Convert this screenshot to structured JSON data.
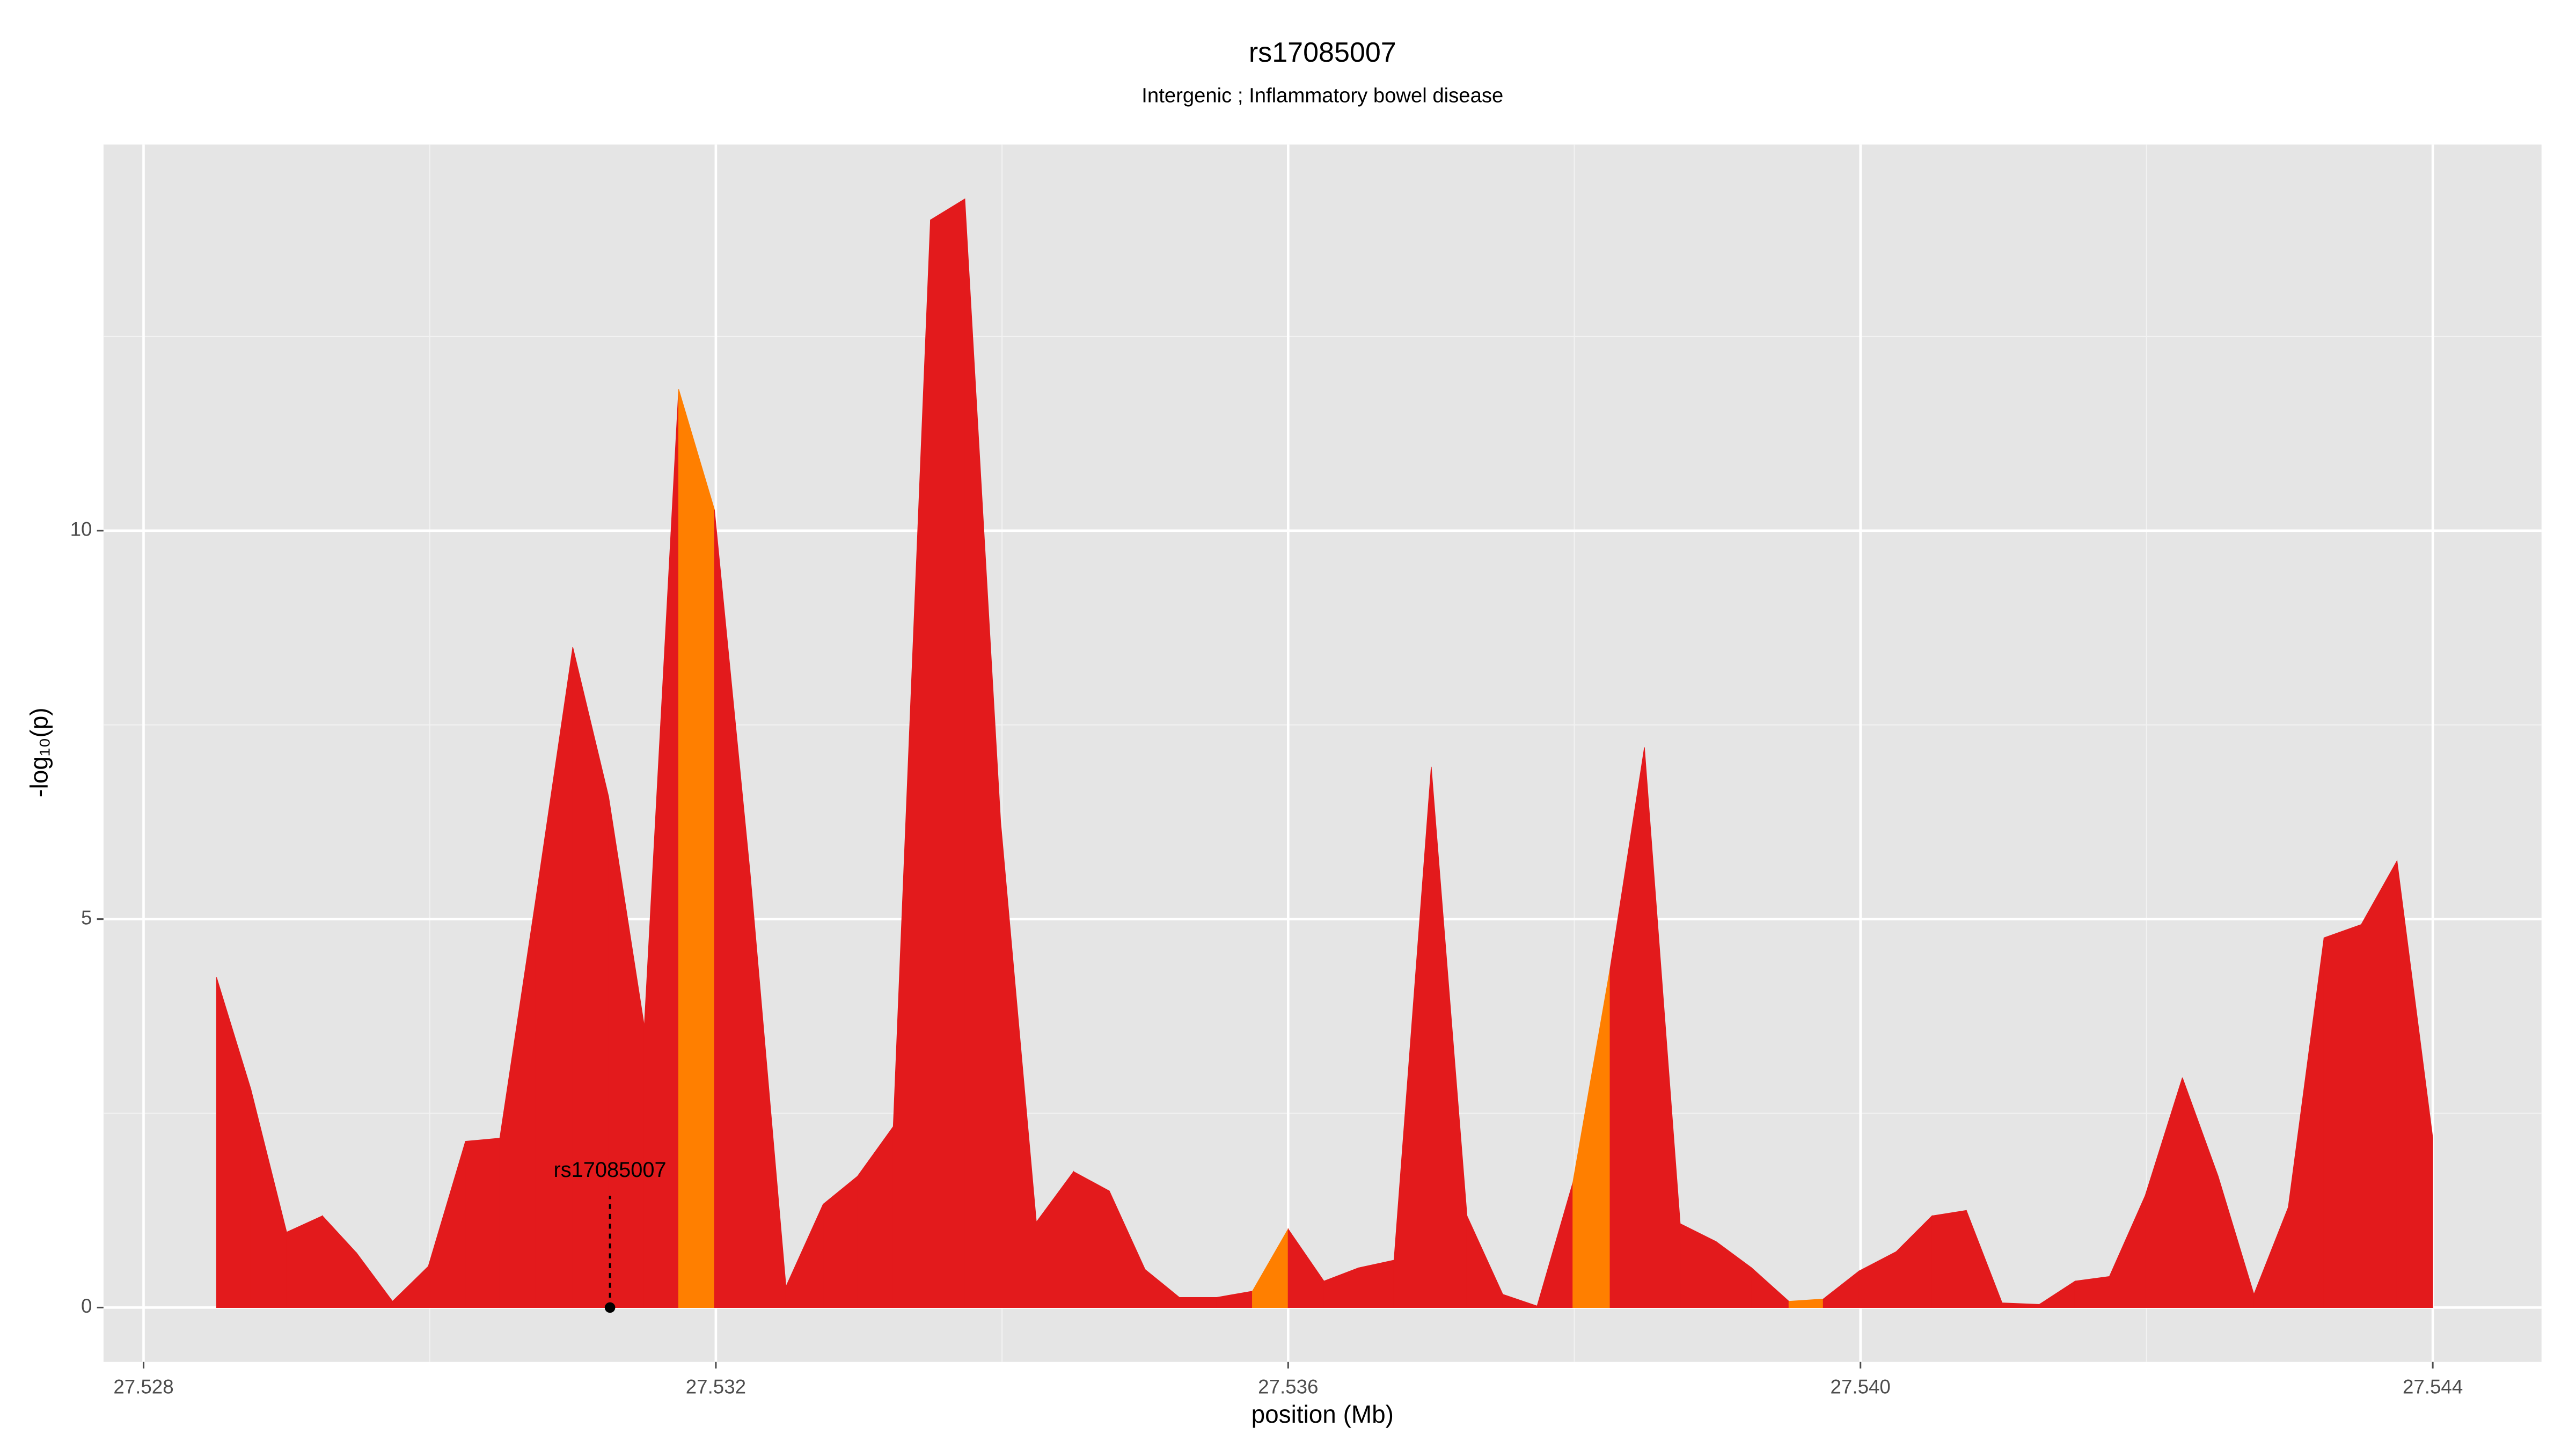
{
  "chart_data": {
    "type": "area",
    "title": "rs17085007",
    "subtitle": "Intergenic ; Inflammatory bowel disease",
    "x_label": "position (Mb)",
    "y_label": "-log₁₀(p)",
    "xlim": [
      27.52772,
      27.54476
    ],
    "ylim": [
      -0.7,
      14.97
    ],
    "xticks": [
      27.528,
      27.532,
      27.536,
      {
        "value": 27.54,
        "label": "27.540"
      },
      27.544
    ],
    "yticks": [
      0,
      5,
      10
    ],
    "grid": true,
    "minor_grid": true,
    "background": "#e5e5e5",
    "x": [
      27.52851,
      27.52875,
      27.529,
      27.52925,
      27.52949,
      27.52974,
      27.52999,
      27.53025,
      27.53049,
      27.53074,
      27.531,
      27.53125,
      27.5315,
      27.53174,
      27.53199,
      27.53224,
      27.53249,
      27.53275,
      27.53299,
      27.53324,
      27.5335,
      27.53374,
      27.53399,
      27.53424,
      27.5345,
      27.53475,
      27.535,
      27.53524,
      27.5355,
      27.53575,
      27.536,
      27.53625,
      27.53649,
      27.53674,
      27.537,
      27.53725,
      27.5375,
      27.53774,
      27.53799,
      27.53825,
      27.53849,
      27.53874,
      27.53899,
      27.53924,
      27.5395,
      27.53974,
      27.53999,
      27.54025,
      27.5405,
      27.54074,
      27.54099,
      27.54125,
      27.5415,
      27.54174,
      27.54199,
      27.54225,
      27.5425,
      27.54275,
      27.54299,
      27.54324,
      27.5435,
      27.54375,
      27.544
    ],
    "values": [
      4.25,
      2.81,
      0.97,
      1.18,
      0.7,
      0.08,
      0.53,
      2.14,
      2.18,
      5.24,
      8.5,
      6.58,
      3.62,
      11.82,
      10.27,
      5.58,
      0.27,
      1.33,
      1.69,
      2.33,
      14.0,
      14.27,
      6.26,
      1.1,
      1.75,
      1.5,
      0.49,
      0.13,
      0.13,
      0.21,
      1.01,
      0.34,
      0.51,
      0.61,
      6.96,
      1.18,
      0.17,
      0.02,
      1.61,
      4.36,
      7.21,
      1.08,
      0.85,
      0.51,
      0.08,
      0.11,
      0.47,
      0.72,
      1.18,
      1.25,
      0.06,
      0.04,
      0.34,
      0.4,
      1.44,
      2.96,
      1.69,
      0.17,
      1.29,
      4.76,
      4.93,
      5.75,
      2.18
    ],
    "colors": [
      "#e31a1c",
      "#e31a1c",
      "#e31a1c",
      "#e31a1c",
      "#e31a1c",
      "#e31a1c",
      "#e31a1c",
      "#e31a1c",
      "#e31a1c",
      "#e31a1c",
      "#e31a1c",
      "#e31a1c",
      "#e31a1c",
      "#ff7f00",
      "#e31a1c",
      "#e31a1c",
      "#e31a1c",
      "#e31a1c",
      "#e31a1c",
      "#e31a1c",
      "#e31a1c",
      "#e31a1c",
      "#e31a1c",
      "#e31a1c",
      "#e31a1c",
      "#e31a1c",
      "#e31a1c",
      "#e31a1c",
      "#e31a1c",
      "#ff7f00",
      "#e31a1c",
      "#e31a1c",
      "#e31a1c",
      "#e31a1c",
      "#e31a1c",
      "#e31a1c",
      "#e31a1c",
      "#e31a1c",
      "#ff7f00",
      "#e31a1c",
      "#e31a1c",
      "#e31a1c",
      "#e31a1c",
      "#e31a1c",
      "#ff7f00",
      "#e31a1c",
      "#e31a1c",
      "#e31a1c",
      "#e31a1c",
      "#e31a1c",
      "#e31a1c",
      "#e31a1c",
      "#e31a1c",
      "#e31a1c",
      "#e31a1c",
      "#e31a1c",
      "#e31a1c",
      "#e31a1c",
      "#e31a1c",
      "#e31a1c",
      "#e31a1c",
      "#e31a1c",
      "#e31a1c"
    ],
    "annotation": {
      "text": "rs17085007",
      "x": 27.53126,
      "y": 0
    }
  }
}
